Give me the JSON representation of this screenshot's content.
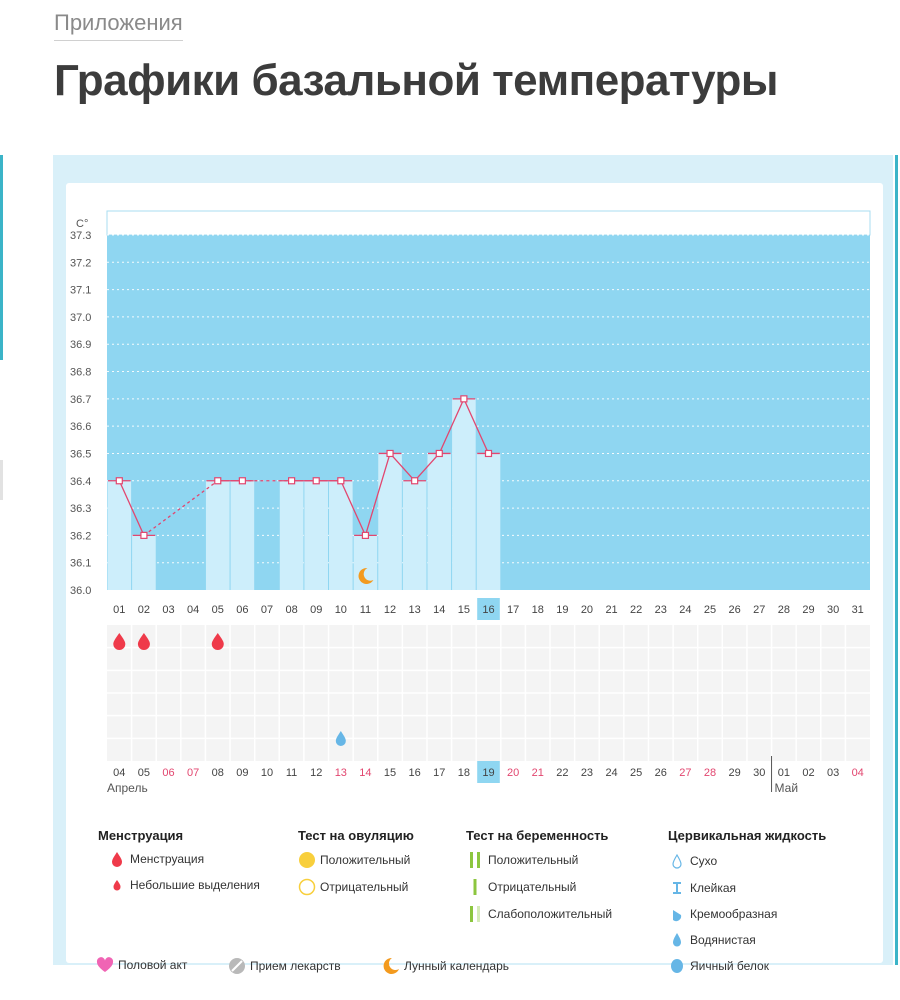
{
  "breadcrumb": "Приложения",
  "page_title": "Графики базальной температуры",
  "chart_data": {
    "type": "bar",
    "ylabel": "C°",
    "ylim": [
      36.0,
      37.3
    ],
    "y_ticks": [
      "36.0",
      "36.1",
      "36.2",
      "36.3",
      "36.4",
      "36.5",
      "36.6",
      "36.7",
      "36.8",
      "36.9",
      "37.0",
      "37.1",
      "37.2",
      "37.3"
    ],
    "cycle_days": [
      "01",
      "02",
      "03",
      "04",
      "05",
      "06",
      "07",
      "08",
      "09",
      "10",
      "11",
      "12",
      "13",
      "14",
      "15",
      "16",
      "17",
      "18",
      "19",
      "20",
      "21",
      "22",
      "23",
      "24",
      "25",
      "26",
      "27",
      "28",
      "29",
      "30",
      "31"
    ],
    "current_cycle_day": "16",
    "dates": [
      "04",
      "05",
      "06",
      "07",
      "08",
      "09",
      "10",
      "11",
      "12",
      "13",
      "14",
      "15",
      "16",
      "17",
      "18",
      "19",
      "20",
      "21",
      "22",
      "23",
      "24",
      "25",
      "26",
      "27",
      "28",
      "29",
      "30",
      "01",
      "02",
      "03",
      "04"
    ],
    "weekend_dates_index": [
      2,
      3,
      9,
      10,
      16,
      17,
      23,
      24,
      30
    ],
    "current_date": "19",
    "month_start": "Апрель",
    "month_next": "Май",
    "month_next_index": 27,
    "temperatures": [
      36.4,
      36.2,
      null,
      null,
      36.4,
      36.4,
      null,
      36.4,
      36.4,
      36.4,
      36.2,
      36.5,
      36.4,
      36.5,
      36.7,
      36.5,
      null,
      null,
      null,
      null,
      null,
      null,
      null,
      null,
      null,
      null,
      null,
      null,
      null,
      null,
      null
    ],
    "menstruation_days_index": [
      0,
      1,
      4
    ],
    "moon_day_index": 10,
    "fluid_watery_day_index": 9
  },
  "legend": {
    "menstruation": {
      "title": "Менструация",
      "items": [
        "Менструация",
        "Небольшие выделения"
      ]
    },
    "ovulation": {
      "title": "Тест на овуляцию",
      "items": [
        "Положительный",
        "Отрицательный"
      ]
    },
    "pregnancy": {
      "title": "Тест на беременность",
      "items": [
        "Положительный",
        "Отрицательный",
        "Слабоположительный"
      ]
    },
    "cervical": {
      "title": "Цервикальная жидкость",
      "items": [
        "Сухо",
        "Клейкая",
        "Кремообразная",
        "Водянистая",
        "Яичный белок"
      ]
    },
    "bottom": [
      "Половой акт",
      "Прием лекарств",
      "Лунный календарь"
    ]
  },
  "colors": {
    "plot_bg": "#8fd6f1",
    "bar": "#cdeefb",
    "line": "#e2466f",
    "menstruation": "#ef3a4a",
    "weekend": "#e2466f",
    "ovulation": "#f8cf3c",
    "pregnancy": "#8cc63f",
    "fluid": "#66b6e6",
    "heart": "#f064b4",
    "pill": "#b9b9b9",
    "moon": "#f39a1e"
  }
}
